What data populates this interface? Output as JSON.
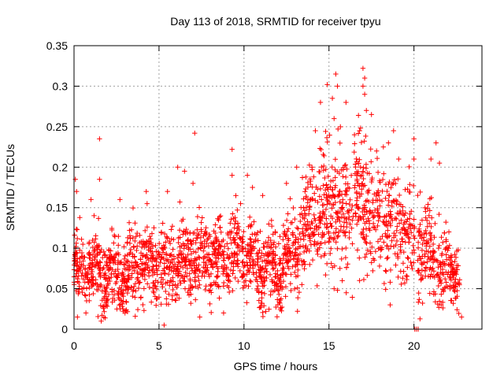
{
  "chart_data": {
    "type": "scatter",
    "title": "Day 113 of 2018, SRMTID for receiver tpyu",
    "xlabel": "GPS time / hours",
    "ylabel": "SRMTID / TECUs",
    "xlim": [
      0,
      24
    ],
    "ylim": [
      0,
      0.35
    ],
    "x_ticks": [
      0,
      5,
      10,
      15,
      20
    ],
    "x_tick_labels": [
      "0",
      "5",
      "10",
      "15",
      "20"
    ],
    "y_ticks": [
      0,
      0.05,
      0.1,
      0.15,
      0.2,
      0.25,
      0.3,
      0.35
    ],
    "y_tick_labels": [
      "0",
      "0.05",
      "0.1",
      "0.15",
      "0.2",
      "0.25",
      "0.3",
      "0.35"
    ],
    "grid": true,
    "marker": "plus",
    "marker_color": "#ff0000",
    "grid_color": "#a0a0a0",
    "trend": [
      [
        0,
        0.075
      ],
      [
        1,
        0.078
      ],
      [
        2,
        0.068
      ],
      [
        3,
        0.065
      ],
      [
        4,
        0.085
      ],
      [
        5,
        0.075
      ],
      [
        6,
        0.082
      ],
      [
        7,
        0.088
      ],
      [
        8,
        0.085
      ],
      [
        9,
        0.09
      ],
      [
        10,
        0.092
      ],
      [
        11,
        0.075
      ],
      [
        12,
        0.075
      ],
      [
        13,
        0.1
      ],
      [
        14,
        0.135
      ],
      [
        15,
        0.15
      ],
      [
        16,
        0.15
      ],
      [
        17,
        0.155
      ],
      [
        18,
        0.13
      ],
      [
        19,
        0.12
      ],
      [
        20,
        0.115
      ],
      [
        21,
        0.095
      ],
      [
        22,
        0.075
      ],
      [
        22.7,
        0.07
      ]
    ],
    "spread": [
      [
        0,
        0.03
      ],
      [
        5,
        0.03
      ],
      [
        10,
        0.032
      ],
      [
        12.5,
        0.035
      ],
      [
        14,
        0.045
      ],
      [
        16,
        0.05
      ],
      [
        18,
        0.045
      ],
      [
        20,
        0.04
      ],
      [
        22.7,
        0.03
      ]
    ],
    "outliers": [
      [
        0.08,
        0.185
      ],
      [
        0.15,
        0.17
      ],
      [
        1.5,
        0.235
      ],
      [
        1.5,
        0.185
      ],
      [
        1.0,
        0.16
      ],
      [
        2.7,
        0.16
      ],
      [
        4.25,
        0.17
      ],
      [
        4.3,
        0.155
      ],
      [
        5.5,
        0.17
      ],
      [
        6.1,
        0.2
      ],
      [
        6.5,
        0.195
      ],
      [
        7.1,
        0.242
      ],
      [
        7.0,
        0.18
      ],
      [
        9.3,
        0.222
      ],
      [
        9.3,
        0.19
      ],
      [
        9.8,
        0.155
      ],
      [
        10.2,
        0.19
      ],
      [
        10.5,
        0.175
      ],
      [
        11.1,
        0.165
      ],
      [
        12.5,
        0.18
      ],
      [
        13.1,
        0.2
      ],
      [
        13.5,
        0.15
      ],
      [
        14.0,
        0.2
      ],
      [
        14.2,
        0.245
      ],
      [
        14.5,
        0.28
      ],
      [
        14.9,
        0.302
      ],
      [
        15.2,
        0.285
      ],
      [
        15.4,
        0.315
      ],
      [
        15.5,
        0.3
      ],
      [
        15.3,
        0.26
      ],
      [
        16.0,
        0.28
      ],
      [
        16.5,
        0.24
      ],
      [
        16.8,
        0.245
      ],
      [
        17.0,
        0.322
      ],
      [
        17.1,
        0.31
      ],
      [
        17.0,
        0.3
      ],
      [
        17.1,
        0.29
      ],
      [
        17.2,
        0.27
      ],
      [
        17.5,
        0.265
      ],
      [
        17.8,
        0.22
      ],
      [
        18.2,
        0.225
      ],
      [
        18.5,
        0.23
      ],
      [
        18.8,
        0.245
      ],
      [
        19.1,
        0.21
      ],
      [
        20.0,
        0.235
      ],
      [
        20.0,
        0.21
      ],
      [
        21.3,
        0.23
      ],
      [
        21.0,
        0.21
      ],
      [
        21.5,
        0.205
      ],
      [
        20.5,
        0.105
      ],
      [
        0.2,
        0.015
      ],
      [
        0.7,
        0.02
      ],
      [
        1.6,
        0.01
      ],
      [
        3.0,
        0.02
      ],
      [
        5.3,
        0.005
      ],
      [
        7.4,
        0.015
      ],
      [
        8.8,
        0.02
      ],
      [
        15.3,
        0.05
      ],
      [
        15.5,
        0.048
      ],
      [
        16.8,
        0.06
      ],
      [
        18.6,
        0.03
      ],
      [
        22.8,
        0.015
      ],
      [
        21.6,
        0.03
      ]
    ],
    "gap_hours": [
      20.05,
      20.2
    ],
    "zero_points": [
      [
        20.05,
        0.0
      ],
      [
        20.15,
        0.0
      ],
      [
        20.25,
        0.0
      ]
    ],
    "n_points": 2300
  }
}
